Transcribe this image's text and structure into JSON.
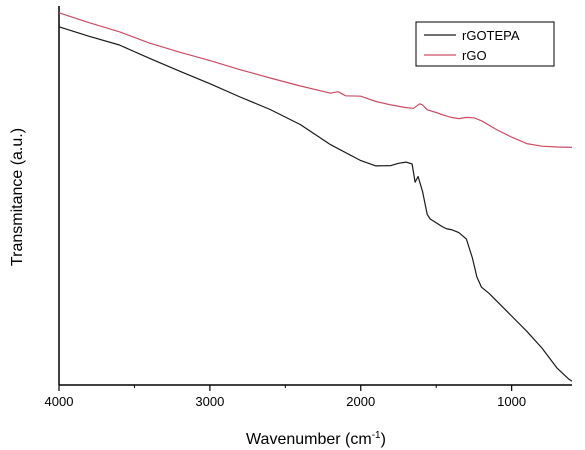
{
  "chart_data": {
    "type": "line",
    "xlabel": "Wavenumber (cm",
    "xlabel_superscript": "-1",
    "xlabel_suffix": ")",
    "ylabel": "Transmitance (a.u.)",
    "xlim": [
      4000,
      600
    ],
    "x_reversed": true,
    "x_ticks": [
      4000,
      3000,
      2000,
      1000
    ],
    "x_tick_labels": [
      "4000",
      "3000",
      "2000",
      "1000"
    ],
    "ylim": [
      0,
      100
    ],
    "y_ticks_shown": false,
    "grid": false,
    "legend_position": "top-right",
    "series": [
      {
        "name": "rGOTEPA",
        "color": "#1a1a1a",
        "points": [
          [
            4000,
            94.5
          ],
          [
            3800,
            92.0
          ],
          [
            3600,
            89.7
          ],
          [
            3400,
            86.2
          ],
          [
            3200,
            82.8
          ],
          [
            3000,
            79.5
          ],
          [
            2800,
            76.0
          ],
          [
            2600,
            72.7
          ],
          [
            2400,
            68.7
          ],
          [
            2200,
            63.4
          ],
          [
            2000,
            59.2
          ],
          [
            1900,
            57.8
          ],
          [
            1800,
            57.9
          ],
          [
            1750,
            58.5
          ],
          [
            1700,
            58.8
          ],
          [
            1660,
            58.3
          ],
          [
            1640,
            53.5
          ],
          [
            1620,
            55.0
          ],
          [
            1590,
            51.0
          ],
          [
            1560,
            45.0
          ],
          [
            1540,
            43.8
          ],
          [
            1500,
            42.8
          ],
          [
            1460,
            41.8
          ],
          [
            1430,
            41.2
          ],
          [
            1400,
            41.0
          ],
          [
            1350,
            40.2
          ],
          [
            1300,
            38.5
          ],
          [
            1260,
            33.5
          ],
          [
            1230,
            28.5
          ],
          [
            1200,
            25.8
          ],
          [
            1150,
            24.2
          ],
          [
            1100,
            22.2
          ],
          [
            1000,
            18.2
          ],
          [
            900,
            14.2
          ],
          [
            800,
            9.8
          ],
          [
            700,
            4.5
          ],
          [
            620,
            1.5
          ],
          [
            600,
            1.0
          ]
        ]
      },
      {
        "name": "rGO",
        "color": "#cc4d63",
        "points": [
          [
            4000,
            98.2
          ],
          [
            3800,
            95.6
          ],
          [
            3600,
            93.2
          ],
          [
            3400,
            90.2
          ],
          [
            3200,
            87.8
          ],
          [
            3000,
            85.6
          ],
          [
            2800,
            83.2
          ],
          [
            2600,
            81.0
          ],
          [
            2400,
            78.9
          ],
          [
            2200,
            77.0
          ],
          [
            2150,
            77.4
          ],
          [
            2100,
            76.3
          ],
          [
            2000,
            76.2
          ],
          [
            1900,
            74.8
          ],
          [
            1800,
            73.9
          ],
          [
            1700,
            73.2
          ],
          [
            1650,
            73.0
          ],
          [
            1610,
            74.2
          ],
          [
            1590,
            73.9
          ],
          [
            1560,
            72.6
          ],
          [
            1500,
            71.9
          ],
          [
            1450,
            71.2
          ],
          [
            1400,
            70.6
          ],
          [
            1350,
            70.3
          ],
          [
            1300,
            70.6
          ],
          [
            1250,
            70.5
          ],
          [
            1200,
            69.7
          ],
          [
            1100,
            67.4
          ],
          [
            1000,
            65.4
          ],
          [
            900,
            63.7
          ],
          [
            800,
            63.0
          ],
          [
            700,
            62.8
          ],
          [
            600,
            62.7
          ]
        ]
      }
    ]
  }
}
